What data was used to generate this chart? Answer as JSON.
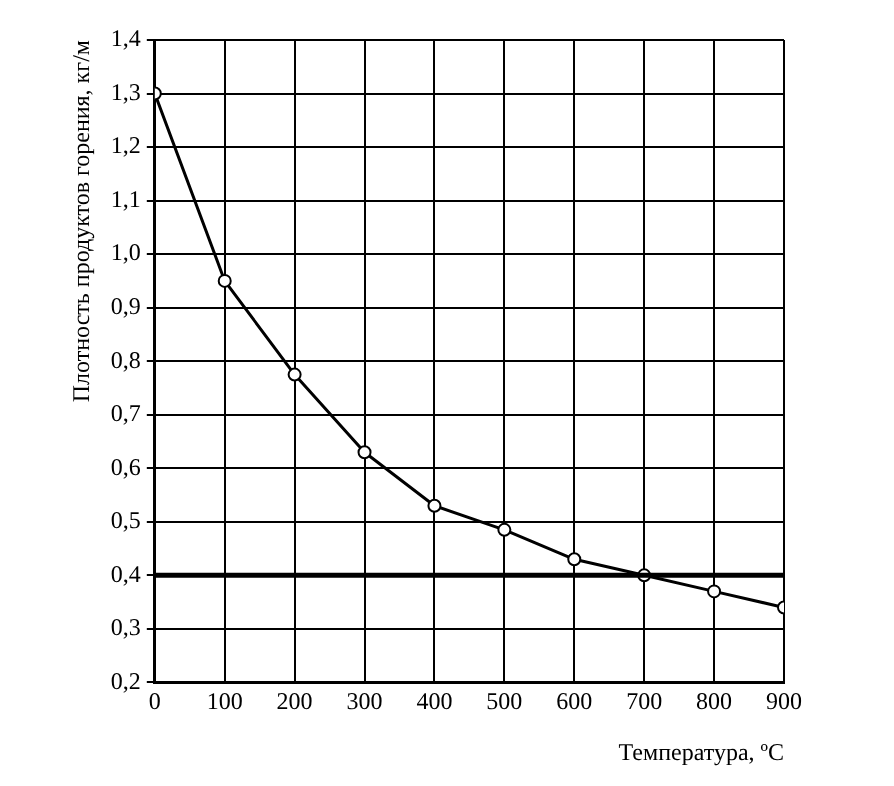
{
  "chart_data": {
    "type": "line",
    "xlabel": "Температура, ºC",
    "ylabel": "Плотность продуктов горения, кг/м",
    "x": [
      0,
      100,
      200,
      300,
      400,
      500,
      600,
      700,
      800,
      900
    ],
    "series": [
      {
        "color": "#000000",
        "values": [
          1.3,
          0.95,
          0.775,
          0.63,
          0.53,
          0.485,
          0.43,
          0.4,
          0.37,
          0.34
        ]
      }
    ],
    "xlim": [
      0,
      900
    ],
    "xticks": [
      0,
      100,
      200,
      300,
      400,
      500,
      600,
      700,
      800,
      900
    ],
    "ylim": [
      0.2,
      1.4
    ],
    "yticks": [
      {
        "value": 0.2,
        "label": "0,2"
      },
      {
        "value": 0.3,
        "label": "0,3"
      },
      {
        "value": 0.4,
        "label": "0,4"
      },
      {
        "value": 0.5,
        "label": "0,5"
      },
      {
        "value": 0.6,
        "label": "0,6"
      },
      {
        "value": 0.7,
        "label": "0,7"
      },
      {
        "value": 0.8,
        "label": "0,8"
      },
      {
        "value": 0.9,
        "label": "0,9"
      },
      {
        "value": 1.0,
        "label": "1,0"
      },
      {
        "value": 1.1,
        "label": "1,1"
      },
      {
        "value": 1.2,
        "label": "1,2"
      },
      {
        "value": 1.3,
        "label": "1,3"
      },
      {
        "value": 1.4,
        "label": "1,4"
      }
    ],
    "ref_lines": [
      {
        "axis": "y",
        "value": 0.4,
        "color": "#000000"
      }
    ],
    "grid": true,
    "legend": false,
    "marker": "circle",
    "line_style": "solid"
  }
}
